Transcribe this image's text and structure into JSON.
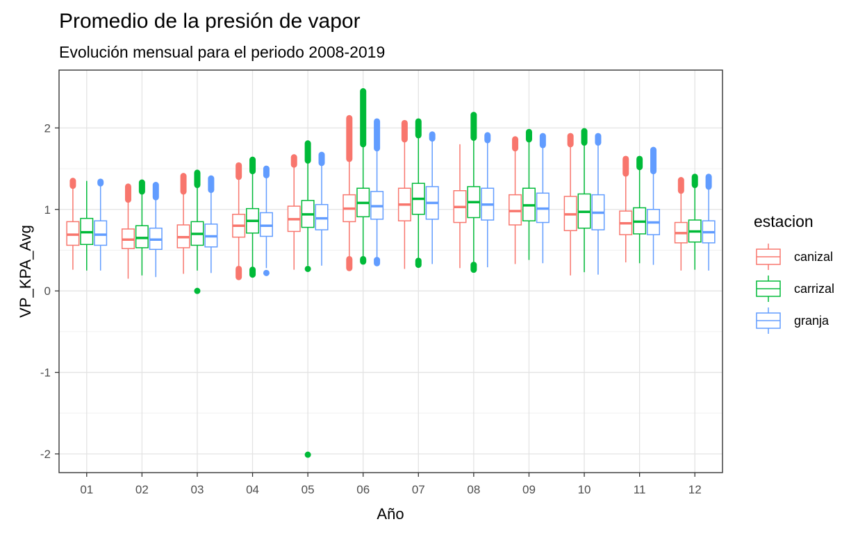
{
  "chart_data": {
    "type": "boxplot",
    "title": "Promedio de la presión de vapor",
    "subtitle": "Evolución mensual para el periodo 2008-2019",
    "xlabel": "Año",
    "ylabel": "VP_KPA_Avg",
    "ylim": [
      -2.23,
      2.71
    ],
    "y_ticks": [
      -2,
      -1,
      0,
      1,
      2
    ],
    "grid": true,
    "legend": {
      "title": "estacion",
      "position": "right"
    },
    "categories": [
      "01",
      "02",
      "03",
      "04",
      "05",
      "06",
      "07",
      "08",
      "09",
      "10",
      "11",
      "12"
    ],
    "series": [
      {
        "name": "canizal",
        "color": "#F8766D",
        "boxes": [
          {
            "q1": 0.56,
            "median": 0.69,
            "q3": 0.85,
            "lower": 0.26,
            "upper": 1.27,
            "out_low": [],
            "out_high": [
              1.29,
              1.35
            ]
          },
          {
            "q1": 0.52,
            "median": 0.63,
            "q3": 0.76,
            "lower": 0.15,
            "upper": 1.1,
            "out_low": [],
            "out_high": [
              1.12,
              1.28
            ]
          },
          {
            "q1": 0.53,
            "median": 0.66,
            "q3": 0.81,
            "lower": 0.21,
            "upper": 1.2,
            "out_low": [],
            "out_high": [
              1.22,
              1.41
            ]
          },
          {
            "q1": 0.66,
            "median": 0.8,
            "q3": 0.94,
            "lower": 0.27,
            "upper": 1.38,
            "out_low": [
              0.17,
              0.27
            ],
            "out_high": [
              1.4,
              1.54
            ]
          },
          {
            "q1": 0.73,
            "median": 0.88,
            "q3": 1.04,
            "lower": 0.26,
            "upper": 1.53,
            "out_low": [],
            "out_high": [
              1.55,
              1.64
            ]
          },
          {
            "q1": 0.85,
            "median": 1.01,
            "q3": 1.18,
            "lower": 0.4,
            "upper": 1.6,
            "out_low": [
              0.28,
              0.39
            ],
            "out_high": [
              1.62,
              2.12
            ]
          },
          {
            "q1": 0.86,
            "median": 1.06,
            "q3": 1.26,
            "lower": 0.27,
            "upper": 1.85,
            "out_low": [],
            "out_high": [
              1.86,
              2.06
            ]
          },
          {
            "q1": 0.84,
            "median": 1.03,
            "q3": 1.23,
            "lower": 0.28,
            "upper": 1.8,
            "out_low": [],
            "out_high": []
          },
          {
            "q1": 0.81,
            "median": 0.98,
            "q3": 1.18,
            "lower": 0.33,
            "upper": 1.73,
            "out_low": [],
            "out_high": [
              1.75,
              1.86
            ]
          },
          {
            "q1": 0.74,
            "median": 0.94,
            "q3": 1.16,
            "lower": 0.19,
            "upper": 1.78,
            "out_low": [],
            "out_high": [
              1.8,
              1.9
            ]
          },
          {
            "q1": 0.69,
            "median": 0.83,
            "q3": 0.98,
            "lower": 0.35,
            "upper": 1.42,
            "out_low": [],
            "out_high": [
              1.44,
              1.62
            ]
          },
          {
            "q1": 0.59,
            "median": 0.71,
            "q3": 0.84,
            "lower": 0.25,
            "upper": 1.21,
            "out_low": [],
            "out_high": [
              1.23,
              1.36
            ]
          }
        ]
      },
      {
        "name": "carrizal",
        "color": "#00BA38",
        "boxes": [
          {
            "q1": 0.57,
            "median": 0.72,
            "q3": 0.89,
            "lower": 0.25,
            "upper": 1.35,
            "out_low": [],
            "out_high": []
          },
          {
            "q1": 0.53,
            "median": 0.65,
            "q3": 0.8,
            "lower": 0.19,
            "upper": 1.2,
            "out_low": [],
            "out_high": [
              1.22,
              1.33
            ]
          },
          {
            "q1": 0.56,
            "median": 0.7,
            "q3": 0.85,
            "lower": 0.25,
            "upper": 1.28,
            "out_low": [
              0.0
            ],
            "out_high": [
              1.3,
              1.45
            ]
          },
          {
            "q1": 0.71,
            "median": 0.86,
            "q3": 1.01,
            "lower": 0.28,
            "upper": 1.45,
            "out_low": [
              0.2,
              0.26
            ],
            "out_high": [
              1.47,
              1.61
            ]
          },
          {
            "q1": 0.78,
            "median": 0.94,
            "q3": 1.11,
            "lower": 0.31,
            "upper": 1.58,
            "out_low": [
              -2.01,
              0.27
            ],
            "out_high": [
              1.6,
              1.81
            ]
          },
          {
            "q1": 0.91,
            "median": 1.08,
            "q3": 1.26,
            "lower": 0.4,
            "upper": 1.78,
            "out_low": [
              0.36,
              0.39
            ],
            "out_high": [
              1.8,
              2.45
            ]
          },
          {
            "q1": 0.94,
            "median": 1.13,
            "q3": 1.32,
            "lower": 0.38,
            "upper": 1.89,
            "out_low": [
              0.32,
              0.37
            ],
            "out_high": [
              1.91,
              2.08
            ]
          },
          {
            "q1": 0.9,
            "median": 1.09,
            "q3": 1.28,
            "lower": 0.33,
            "upper": 1.86,
            "out_low": [
              0.26,
              0.32
            ],
            "out_high": [
              1.88,
              2.16
            ]
          },
          {
            "q1": 0.86,
            "median": 1.05,
            "q3": 1.26,
            "lower": 0.38,
            "upper": 1.84,
            "out_low": [],
            "out_high": [
              1.86,
              1.95
            ]
          },
          {
            "q1": 0.77,
            "median": 0.97,
            "q3": 1.19,
            "lower": 0.23,
            "upper": 1.8,
            "out_low": [],
            "out_high": [
              1.82,
              1.96
            ]
          },
          {
            "q1": 0.7,
            "median": 0.85,
            "q3": 1.02,
            "lower": 0.34,
            "upper": 1.5,
            "out_low": [],
            "out_high": [
              1.52,
              1.62
            ]
          },
          {
            "q1": 0.6,
            "median": 0.73,
            "q3": 0.87,
            "lower": 0.26,
            "upper": 1.28,
            "out_low": [],
            "out_high": [
              1.3,
              1.4
            ]
          }
        ]
      },
      {
        "name": "granja",
        "color": "#619CFF",
        "boxes": [
          {
            "q1": 0.56,
            "median": 0.69,
            "q3": 0.86,
            "lower": 0.25,
            "upper": 1.3,
            "out_low": [],
            "out_high": [
              1.32,
              1.34
            ]
          },
          {
            "q1": 0.51,
            "median": 0.63,
            "q3": 0.77,
            "lower": 0.17,
            "upper": 1.13,
            "out_low": [],
            "out_high": [
              1.15,
              1.3
            ]
          },
          {
            "q1": 0.54,
            "median": 0.67,
            "q3": 0.82,
            "lower": 0.22,
            "upper": 1.22,
            "out_low": [],
            "out_high": [
              1.24,
              1.38
            ]
          },
          {
            "q1": 0.67,
            "median": 0.8,
            "q3": 0.96,
            "lower": 0.28,
            "upper": 1.4,
            "out_low": [
              0.22
            ],
            "out_high": [
              1.42,
              1.5
            ]
          },
          {
            "q1": 0.75,
            "median": 0.89,
            "q3": 1.06,
            "lower": 0.31,
            "upper": 1.55,
            "out_low": [],
            "out_high": [
              1.57,
              1.67
            ]
          },
          {
            "q1": 0.88,
            "median": 1.04,
            "q3": 1.22,
            "lower": 0.4,
            "upper": 1.73,
            "out_low": [
              0.34,
              0.38
            ],
            "out_high": [
              1.75,
              2.08
            ]
          },
          {
            "q1": 0.88,
            "median": 1.08,
            "q3": 1.28,
            "lower": 0.33,
            "upper": 1.85,
            "out_low": [],
            "out_high": [
              1.87,
              1.92
            ]
          },
          {
            "q1": 0.87,
            "median": 1.06,
            "q3": 1.26,
            "lower": 0.29,
            "upper": 1.83,
            "out_low": [],
            "out_high": [
              1.85,
              1.91
            ]
          },
          {
            "q1": 0.84,
            "median": 1.01,
            "q3": 1.2,
            "lower": 0.34,
            "upper": 1.77,
            "out_low": [],
            "out_high": [
              1.79,
              1.9
            ]
          },
          {
            "q1": 0.75,
            "median": 0.96,
            "q3": 1.18,
            "lower": 0.2,
            "upper": 1.8,
            "out_low": [],
            "out_high": [
              1.82,
              1.9
            ]
          },
          {
            "q1": 0.69,
            "median": 0.84,
            "q3": 1.0,
            "lower": 0.32,
            "upper": 1.45,
            "out_low": [],
            "out_high": [
              1.47,
              1.73
            ]
          },
          {
            "q1": 0.59,
            "median": 0.72,
            "q3": 0.86,
            "lower": 0.25,
            "upper": 1.26,
            "out_low": [],
            "out_high": [
              1.28,
              1.4
            ]
          }
        ]
      }
    ]
  }
}
